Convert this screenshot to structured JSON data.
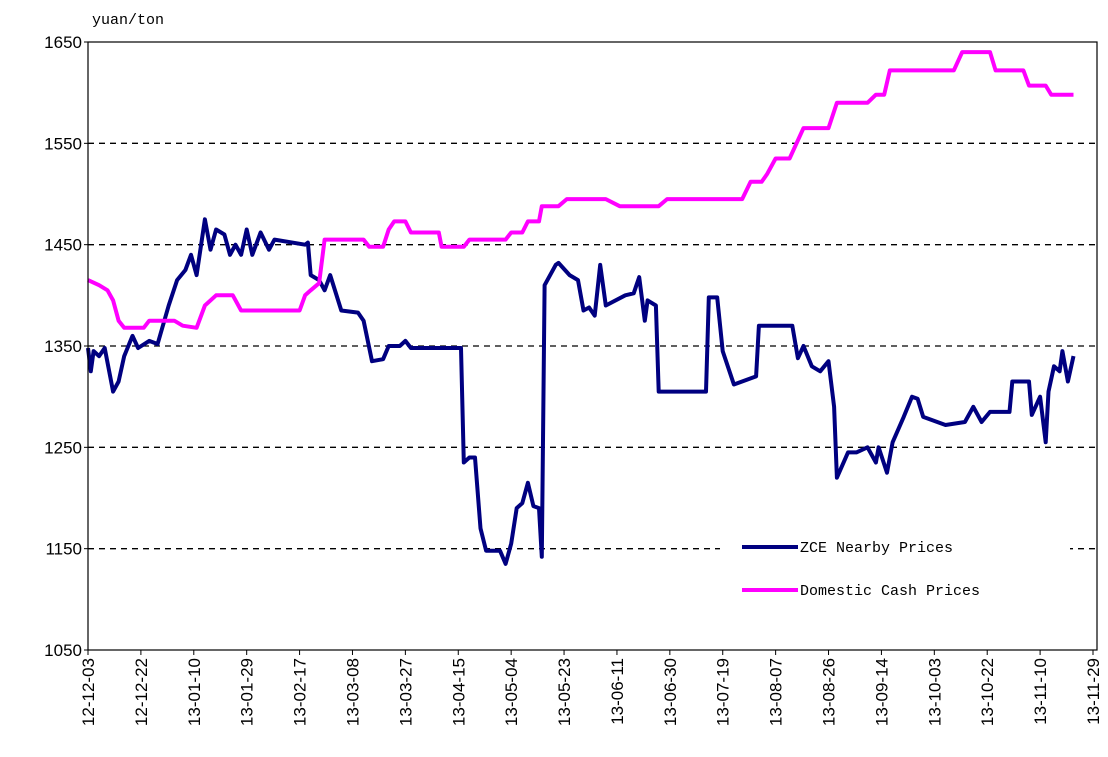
{
  "chart_data": {
    "type": "line",
    "y_label": "yuan/ton",
    "xlim": [
      "12-12-03",
      "13-11-29"
    ],
    "xticks": [
      "12-12-03",
      "12-12-22",
      "13-01-10",
      "13-01-29",
      "13-02-17",
      "13-03-08",
      "13-03-27",
      "13-04-15",
      "13-05-04",
      "13-05-23",
      "13-06-11",
      "13-06-30",
      "13-07-19",
      "13-08-07",
      "13-08-26",
      "13-09-14",
      "13-10-03",
      "13-10-22",
      "13-11-10",
      "13-11-29"
    ],
    "ylim": [
      1050,
      1650
    ],
    "yticks": [
      1050,
      1150,
      1250,
      1350,
      1450,
      1550,
      1650
    ],
    "grid": true,
    "legend": "lower right",
    "series": [
      {
        "name": "ZCE Nearby Prices",
        "color": "#000080",
        "x": [
          "12-12-03",
          "12-12-04",
          "12-12-05",
          "12-12-07",
          "12-12-09",
          "12-12-12",
          "12-12-14",
          "12-12-16",
          "12-12-19",
          "12-12-21",
          "12-12-25",
          "12-12-28",
          "13-01-01",
          "13-01-04",
          "13-01-07",
          "13-01-09",
          "13-01-11",
          "13-01-14",
          "13-01-16",
          "13-01-18",
          "13-01-21",
          "13-01-23",
          "13-01-25",
          "13-01-27",
          "13-01-29",
          "13-01-31",
          "13-02-03",
          "13-02-06",
          "13-02-08",
          "13-02-19",
          "13-02-20",
          "13-02-21",
          "13-02-24",
          "13-02-26",
          "13-02-28",
          "13-03-04",
          "13-03-10",
          "13-03-12",
          "13-03-15",
          "13-03-19",
          "13-03-21",
          "13-03-25",
          "13-03-27",
          "13-03-29",
          "13-04-16",
          "13-04-17",
          "13-04-19",
          "13-04-21",
          "13-04-23",
          "13-04-25",
          "13-04-30",
          "13-05-02",
          "13-05-04",
          "13-05-06",
          "13-05-08",
          "13-05-10",
          "13-05-12",
          "13-05-14",
          "13-05-15",
          "13-05-16",
          "13-05-20",
          "13-05-21",
          "13-05-25",
          "13-05-28",
          "13-05-30",
          "13-06-01",
          "13-06-03",
          "13-06-05",
          "13-06-07",
          "13-06-14",
          "13-06-17",
          "13-06-19",
          "13-06-21",
          "13-06-22",
          "13-06-25",
          "13-06-26",
          "13-07-13",
          "13-07-14",
          "13-07-17",
          "13-07-19",
          "13-07-23",
          "13-07-29",
          "13-07-31",
          "13-08-01",
          "13-08-13",
          "13-08-15",
          "13-08-17",
          "13-08-20",
          "13-08-23",
          "13-08-26",
          "13-08-28",
          "13-08-29",
          "13-09-02",
          "13-09-05",
          "13-09-09",
          "13-09-12",
          "13-09-13",
          "13-09-16",
          "13-09-18",
          "13-09-22",
          "13-09-25",
          "13-09-27",
          "13-09-29",
          "13-10-07",
          "13-10-14",
          "13-10-17",
          "13-10-20",
          "13-10-23",
          "13-10-30",
          "13-10-31",
          "13-11-06",
          "13-11-07",
          "13-11-10",
          "13-11-12",
          "13-11-13",
          "13-11-15",
          "13-11-17",
          "13-11-18",
          "13-11-20",
          "13-11-22"
        ],
        "values": [
          1348,
          1325,
          1345,
          1340,
          1348,
          1305,
          1315,
          1340,
          1360,
          1348,
          1355,
          1352,
          1390,
          1415,
          1425,
          1440,
          1420,
          1475,
          1445,
          1465,
          1460,
          1440,
          1450,
          1440,
          1465,
          1440,
          1462,
          1445,
          1455,
          1450,
          1452,
          1420,
          1415,
          1405,
          1420,
          1385,
          1383,
          1375,
          1335,
          1337,
          1350,
          1350,
          1355,
          1348,
          1348,
          1235,
          1240,
          1240,
          1170,
          1148,
          1148,
          1135,
          1155,
          1190,
          1195,
          1215,
          1192,
          1190,
          1142,
          1410,
          1430,
          1432,
          1420,
          1415,
          1385,
          1388,
          1380,
          1430,
          1390,
          1400,
          1402,
          1418,
          1375,
          1395,
          1390,
          1305,
          1305,
          1398,
          1398,
          1345,
          1312,
          1318,
          1320,
          1370,
          1370,
          1338,
          1350,
          1330,
          1325,
          1335,
          1290,
          1220,
          1245,
          1245,
          1250,
          1235,
          1250,
          1225,
          1255,
          1280,
          1300,
          1298,
          1280,
          1272,
          1275,
          1290,
          1275,
          1285,
          1285,
          1315,
          1315,
          1282,
          1300,
          1255,
          1305,
          1330,
          1325,
          1345,
          1315,
          1340
        ]
      },
      {
        "name": "Domestic Cash Prices",
        "color": "#ff00ff",
        "x": [
          "12-12-03",
          "12-12-07",
          "12-12-10",
          "12-12-12",
          "12-12-14",
          "12-12-16",
          "12-12-23",
          "12-12-25",
          "13-01-03",
          "13-01-06",
          "13-01-11",
          "13-01-14",
          "13-01-18",
          "13-01-24",
          "13-01-27",
          "13-02-17",
          "13-02-19",
          "13-02-21",
          "13-02-24",
          "13-02-26",
          "13-03-12",
          "13-03-14",
          "13-03-19",
          "13-03-21",
          "13-03-23",
          "13-03-27",
          "13-03-29",
          "13-04-08",
          "13-04-09",
          "13-04-17",
          "13-04-19",
          "13-05-02",
          "13-05-04",
          "13-05-08",
          "13-05-10",
          "13-05-14",
          "13-05-15",
          "13-05-21",
          "13-05-24",
          "13-06-07",
          "13-06-12",
          "13-06-26",
          "13-06-29",
          "13-07-26",
          "13-07-29",
          "13-08-02",
          "13-08-04",
          "13-08-07",
          "13-08-12",
          "13-08-17",
          "13-08-26",
          "13-08-29",
          "13-09-09",
          "13-09-12",
          "13-09-15",
          "13-09-17",
          "13-10-10",
          "13-10-13",
          "13-10-23",
          "13-10-25",
          "13-11-04",
          "13-11-06",
          "13-11-12",
          "13-11-14",
          "13-11-22"
        ],
        "values": [
          1415,
          1410,
          1405,
          1395,
          1375,
          1368,
          1368,
          1375,
          1375,
          1370,
          1368,
          1390,
          1400,
          1400,
          1385,
          1385,
          1400,
          1405,
          1412,
          1455,
          1455,
          1448,
          1448,
          1465,
          1473,
          1473,
          1462,
          1462,
          1448,
          1448,
          1455,
          1455,
          1462,
          1462,
          1473,
          1473,
          1488,
          1488,
          1495,
          1495,
          1488,
          1488,
          1495,
          1495,
          1512,
          1512,
          1520,
          1535,
          1535,
          1565,
          1565,
          1590,
          1590,
          1598,
          1598,
          1622,
          1622,
          1640,
          1640,
          1622,
          1622,
          1607,
          1607,
          1598,
          1598
        ]
      }
    ]
  }
}
